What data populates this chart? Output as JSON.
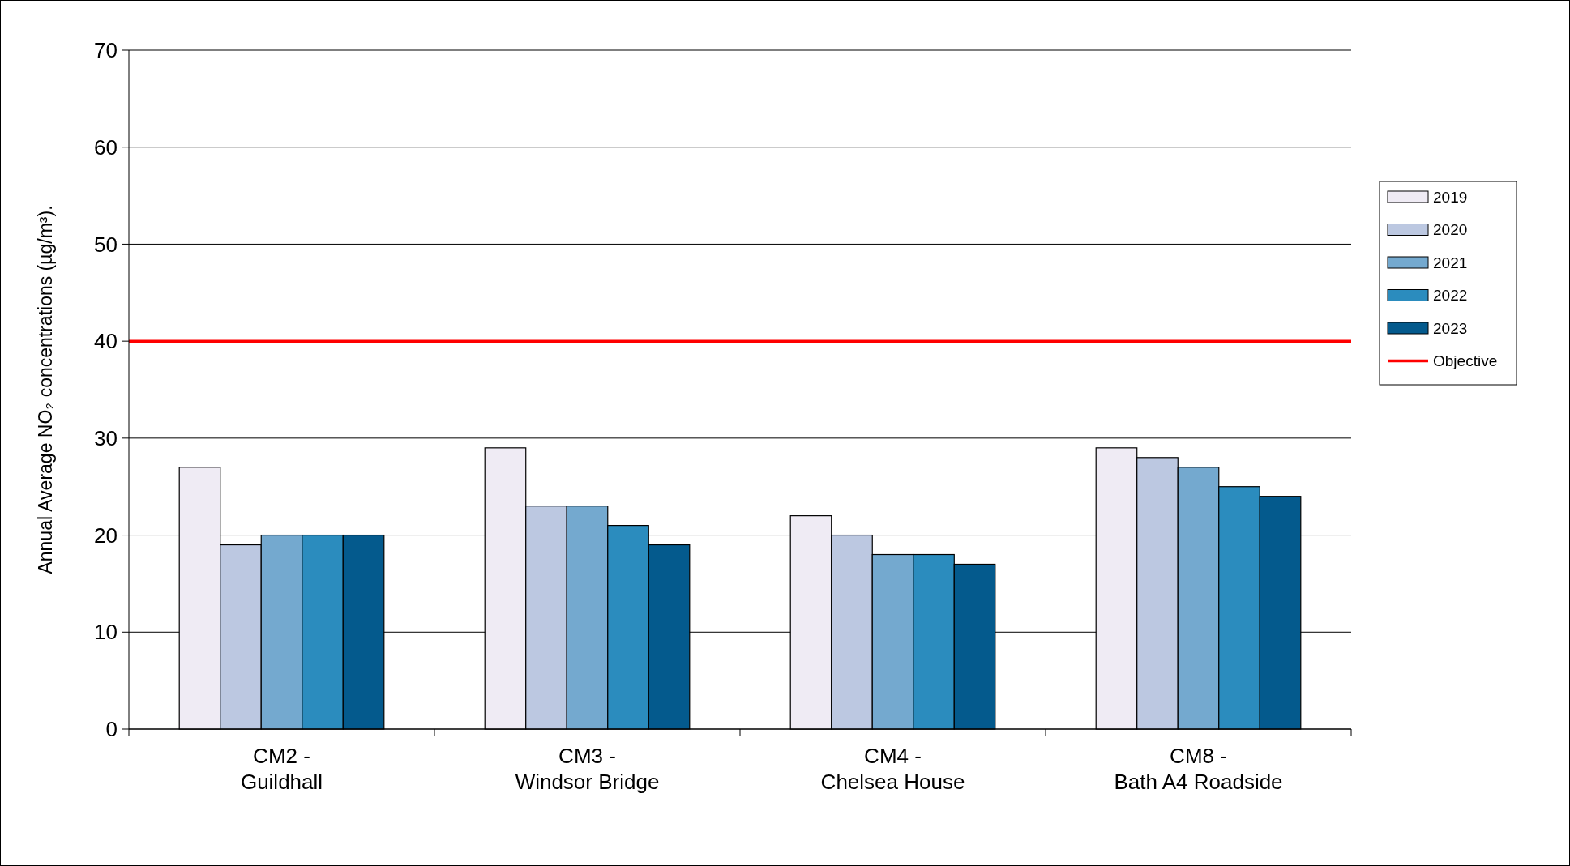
{
  "chart_data": {
    "type": "bar",
    "ylabel": "Annual Average NO₂ concentrations (µg/m³).",
    "categories": [
      "CM2 -\nGuildhall",
      "CM3 -\nWindsor Bridge",
      "CM4 -\nChelsea House",
      "CM8 -\nBath A4 Roadside"
    ],
    "series": [
      {
        "name": "2019",
        "color": "#efebf4",
        "values": [
          27,
          29,
          22,
          29
        ]
      },
      {
        "name": "2020",
        "color": "#bcc8e1",
        "values": [
          19,
          23,
          20,
          28
        ]
      },
      {
        "name": "2021",
        "color": "#74a9cf",
        "values": [
          20,
          23,
          18,
          27
        ]
      },
      {
        "name": "2022",
        "color": "#2b8cbe",
        "values": [
          20,
          21,
          18,
          25
        ]
      },
      {
        "name": "2023",
        "color": "#045a8d",
        "values": [
          20,
          19,
          17,
          24
        ]
      }
    ],
    "ylim": [
      0,
      70
    ],
    "yticks": [
      0,
      10,
      20,
      30,
      40,
      50,
      60,
      70
    ],
    "grid": "y",
    "legend": "right",
    "ref_lines": [
      {
        "axis": "y",
        "value": 40,
        "label": "Objective",
        "color": "#ff0000"
      }
    ]
  }
}
